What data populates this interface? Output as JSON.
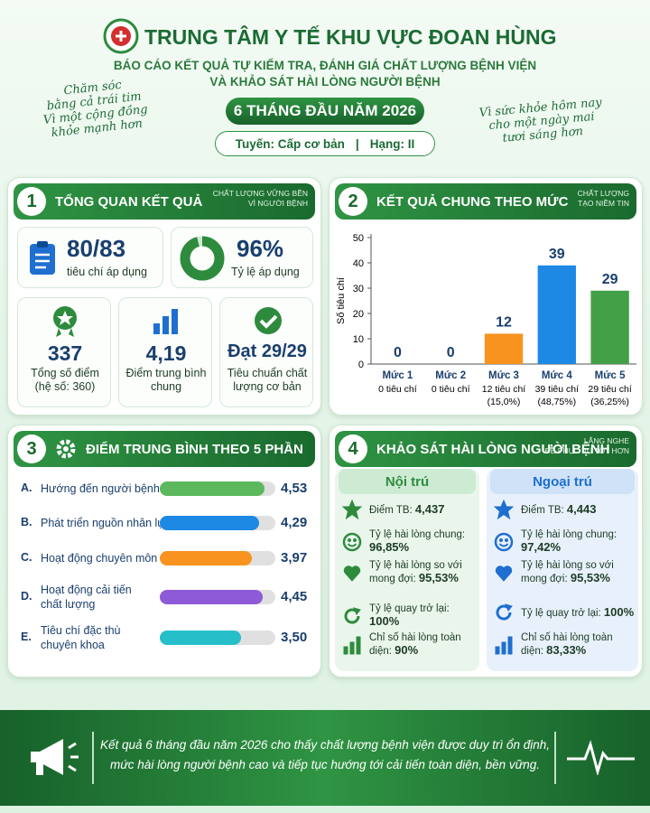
{
  "header": {
    "title": "TRUNG TÂM Y TẾ KHU VỰC ĐOAN HÙNG",
    "subtitle": [
      "BÁO CÁO KẾT QUẢ TỰ KIỂM TRA, ĐÁNH GIÁ CHẤT LƯỢNG BỆNH VIỆN",
      "VÀ KHẢO SÁT HÀI LÒNG NGƯỜI BỆNH"
    ],
    "period": "6 THÁNG ĐẦU NĂM 2026",
    "tier": "Tuyến: Cấp cơ bản",
    "rank": "Hạng: II",
    "slogan_left": [
      "Chăm sóc",
      "bằng cả trái tim",
      "Vì một cộng đồng",
      "khỏe mạnh hơn"
    ],
    "slogan_right": [
      "Vì sức khỏe hôm nay",
      "cho một ngày mai",
      "tươi sáng hơn"
    ]
  },
  "overview": {
    "number": "1",
    "title": "TỔNG QUAN KẾT QUẢ",
    "tag": [
      "CHẤT LƯỢNG VỮNG BỀN",
      "VÌ NGƯỜI BỆNH"
    ],
    "criteria": {
      "value": "80/83",
      "label": "tiêu chí áp dụng"
    },
    "rate": {
      "value": 96,
      "value_label": "96%",
      "label": "Tỷ lệ áp dụng"
    },
    "stats": [
      {
        "value": "337",
        "label": [
          "Tổng số điểm",
          "(hệ số: 360)"
        ]
      },
      {
        "value": "4,19",
        "label": [
          "Điểm trung bình",
          "chung"
        ]
      },
      {
        "value": "Đạt 29/29",
        "label": [
          "Tiêu chuẩn chất",
          "lượng cơ bản"
        ]
      }
    ]
  },
  "chart_data": [
    {
      "type": "bar",
      "number": "2",
      "title": "KẾT QUẢ CHUNG THEO MỨC",
      "tag": [
        "CHẤT LƯỢNG",
        "TẠO NIỀM TIN"
      ],
      "ylabel": "Số tiêu chí",
      "categories": [
        "Mức 1",
        "Mức 2",
        "Mức 3",
        "Mức 4",
        "Mức 5"
      ],
      "values": [
        0,
        0,
        12,
        39,
        29
      ],
      "colors": [
        "#9e9e9e",
        "#9e9e9e",
        "#f7931e",
        "#1e88e5",
        "#43a047"
      ],
      "notes": [
        "0 tiêu chí",
        "0 tiêu chí",
        "12 tiêu chí",
        "39 tiêu chí",
        "29 tiêu chí"
      ],
      "shares": [
        null,
        null,
        "(15,0%)",
        "(48,75%)",
        "(36,25%)"
      ],
      "ylim": [
        0,
        50
      ],
      "yticks": [
        0,
        10,
        20,
        30,
        40,
        50
      ]
    },
    {
      "type": "hbar",
      "number": "3",
      "title": "ĐIỂM TRUNG BÌNH THEO 5 PHẦN",
      "letters": [
        "A.",
        "B.",
        "C.",
        "D.",
        "E."
      ],
      "categories": [
        [
          "Hướng đến người bệnh"
        ],
        [
          "Phát triển nguồn nhân lực"
        ],
        [
          "Hoạt động chuyên môn"
        ],
        [
          "Hoạt động cải tiến",
          "chất lượng"
        ],
        [
          "Tiêu chí đặc thù",
          "chuyên khoa"
        ]
      ],
      "values": [
        4.53,
        4.29,
        3.97,
        4.45,
        3.5
      ],
      "value_labels": [
        "4,53",
        "4,29",
        "3,97",
        "4,45",
        "3,50"
      ],
      "colors": [
        "#5cb85c",
        "#1e88e5",
        "#f7931e",
        "#8e5ad8",
        "#26bfc9"
      ],
      "xlim": [
        0,
        5
      ]
    }
  ],
  "survey": {
    "number": "4",
    "title": "KHẢO SÁT HÀI LÒNG NGƯỜI BỆNH",
    "tag": [
      "LẮNG NGHE",
      "ĐỂ PHỤC VỤ TỐT HƠN"
    ],
    "groups": [
      {
        "name": "Nội trú",
        "rows": [
          {
            "label": "Điểm TB:",
            "value": "4,437"
          },
          {
            "label": "Tỷ lệ hài lòng chung:",
            "value": "96,85%"
          },
          {
            "label": "Tỷ lệ hài lòng so với mong đợi:",
            "value": "95,53%"
          },
          {
            "label": "Tỷ lệ quay trở lại:",
            "value": "100%"
          },
          {
            "label": "Chỉ số hài lòng toàn diện:",
            "value": "90%"
          }
        ]
      },
      {
        "name": "Ngoại trú",
        "rows": [
          {
            "label": "Điểm TB:",
            "value": "4,443"
          },
          {
            "label": "Tỷ lệ hài lòng chung:",
            "value": "97,42%"
          },
          {
            "label": "Tỷ lệ hài lòng so với mong đợi:",
            "value": "95,53%"
          },
          {
            "label": "Tỷ lệ quay trở lại:",
            "value": "100%"
          },
          {
            "label": "Chỉ số hài lòng toàn diện:",
            "value": "83,33%"
          }
        ]
      }
    ]
  },
  "footer": {
    "text": [
      "Kết quả 6 tháng đầu năm 2026 cho thấy chất lượng bệnh viện được duy trì ổn định,",
      "mức hài lòng người bệnh cao và tiếp tục hướng tới cải tiến toàn diện, bền vững."
    ]
  }
}
